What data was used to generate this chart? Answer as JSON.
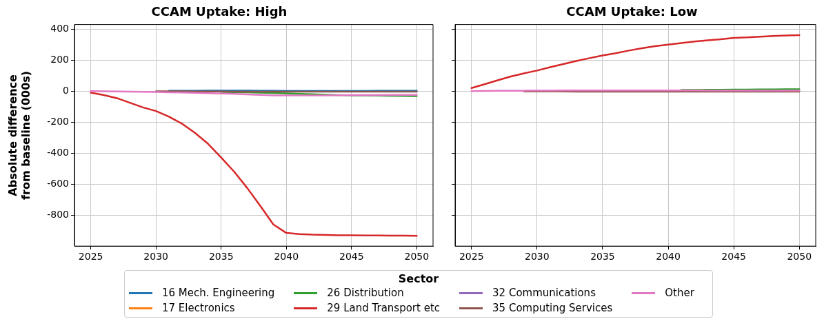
{
  "chart_data": [
    {
      "type": "line",
      "title": "CCAM Uptake: High",
      "ylabel": "Absolute difference\nfrom baseline (000s)",
      "legend": "bottom",
      "legend_title": "Sector",
      "grid": true,
      "x": [
        2025,
        2026,
        2027,
        2028,
        2029,
        2030,
        2031,
        2032,
        2033,
        2034,
        2035,
        2036,
        2037,
        2038,
        2039,
        2040,
        2041,
        2042,
        2043,
        2044,
        2045,
        2046,
        2047,
        2048,
        2049,
        2050
      ],
      "xlim": [
        2023.75,
        2051.25
      ],
      "xticks": [
        2025,
        2030,
        2035,
        2040,
        2045,
        2050
      ],
      "ylim": [
        -1000,
        430
      ],
      "yticks": [
        -800,
        -600,
        -400,
        -200,
        0,
        200,
        400
      ],
      "series": [
        {
          "name": "16 Mech. Engineering",
          "color": "#1f77b4",
          "values": [
            null,
            null,
            null,
            null,
            null,
            null,
            3,
            3,
            3,
            4,
            4,
            4,
            4,
            3,
            2,
            1,
            1,
            1,
            1,
            1,
            1,
            1,
            2,
            2,
            2,
            2
          ]
        },
        {
          "name": "17 Electronics",
          "color": "#ff7f0e",
          "values": [
            null,
            null,
            null,
            null,
            null,
            null,
            null,
            null,
            null,
            null,
            null,
            null,
            null,
            null,
            null,
            null,
            null,
            null,
            null,
            null,
            null,
            null,
            null,
            null,
            null,
            null
          ]
        },
        {
          "name": "26 Distribution",
          "color": "#2ca02c",
          "values": [
            null,
            null,
            null,
            null,
            null,
            null,
            null,
            null,
            null,
            null,
            -5,
            -6,
            -8,
            -10,
            -12,
            -14,
            -17,
            -20,
            -23,
            -25,
            -27,
            -28,
            -29,
            -30,
            -31,
            -32
          ]
        },
        {
          "name": "29 Land Transport etc",
          "color": "#d62728",
          "values": [
            -10,
            -25,
            -45,
            -75,
            -105,
            -128,
            -165,
            -210,
            -270,
            -340,
            -428,
            -520,
            -625,
            -740,
            -860,
            -915,
            -922,
            -926,
            -928,
            -930,
            -930,
            -931,
            -931,
            -932,
            -932,
            -933
          ]
        },
        {
          "name": "32 Communications",
          "color": "#9467bd",
          "values": [
            null,
            null,
            null,
            null,
            null,
            null,
            null,
            null,
            null,
            null,
            null,
            null,
            null,
            null,
            null,
            null,
            null,
            null,
            null,
            null,
            null,
            null,
            null,
            null,
            null,
            null
          ]
        },
        {
          "name": "35 Computing Services",
          "color": "#8c564b",
          "values": [
            null,
            null,
            null,
            null,
            null,
            -1,
            -1,
            -1,
            -2,
            -2,
            -2,
            -3,
            -3,
            -3,
            -3,
            -3,
            -3,
            -3,
            -3,
            -3,
            -3,
            -3,
            -3,
            -3,
            -3,
            -3
          ]
        },
        {
          "name": "Other",
          "color": "#e377c2",
          "values": [
            0,
            -1,
            -2,
            -3,
            -4,
            -5,
            -7,
            -9,
            -11,
            -13,
            -15,
            -18,
            -21,
            -24,
            -27,
            -28,
            -28,
            -27,
            -27,
            -26,
            -25,
            -25,
            -25,
            -24,
            -24,
            -24
          ]
        }
      ]
    },
    {
      "type": "line",
      "title": "CCAM Uptake: Low",
      "tick_labels": "x",
      "grid": true,
      "x": [
        2025,
        2026,
        2027,
        2028,
        2029,
        2030,
        2031,
        2032,
        2033,
        2034,
        2035,
        2036,
        2037,
        2038,
        2039,
        2040,
        2041,
        2042,
        2043,
        2044,
        2045,
        2046,
        2047,
        2048,
        2049,
        2050
      ],
      "xlim": [
        2023.75,
        2051.25
      ],
      "xticks": [
        2025,
        2030,
        2035,
        2040,
        2045,
        2050
      ],
      "ylim": [
        -1000,
        430
      ],
      "yticks": [
        -800,
        -600,
        -400,
        -200,
        0,
        200,
        400
      ],
      "series": [
        {
          "color": "#1f77b4",
          "values": [
            null,
            null,
            null,
            null,
            null,
            null,
            null,
            null,
            null,
            null,
            null,
            null,
            null,
            null,
            null,
            null,
            null,
            null,
            null,
            null,
            null,
            null,
            null,
            null,
            null,
            null
          ]
        },
        {
          "color": "#ff7f0e",
          "values": [
            null,
            null,
            null,
            null,
            null,
            null,
            null,
            null,
            null,
            null,
            null,
            null,
            null,
            null,
            null,
            null,
            null,
            null,
            null,
            null,
            null,
            null,
            null,
            null,
            null,
            null
          ]
        },
        {
          "color": "#2ca02c",
          "values": [
            null,
            null,
            null,
            null,
            null,
            null,
            null,
            null,
            null,
            null,
            null,
            null,
            null,
            null,
            null,
            null,
            8,
            8,
            9,
            9,
            10,
            10,
            11,
            11,
            12,
            12
          ]
        },
        {
          "color": "#d62728",
          "values": [
            20,
            45,
            70,
            95,
            115,
            133,
            155,
            175,
            195,
            213,
            230,
            245,
            262,
            277,
            290,
            300,
            310,
            320,
            328,
            335,
            344,
            347,
            352,
            356,
            359,
            361
          ]
        },
        {
          "color": "#9467bd",
          "values": [
            null,
            null,
            null,
            null,
            null,
            null,
            null,
            null,
            null,
            null,
            null,
            null,
            null,
            null,
            null,
            null,
            null,
            null,
            null,
            null,
            null,
            null,
            null,
            null,
            null,
            null
          ]
        },
        {
          "color": "#8c564b",
          "values": [
            null,
            null,
            null,
            null,
            -2,
            -2,
            -2,
            -2,
            -3,
            -3,
            -3,
            -3,
            -3,
            -3,
            -3,
            -3,
            -3,
            -3,
            -3,
            -3,
            -3,
            -3,
            -3,
            -3,
            -3,
            -3
          ]
        },
        {
          "color": "#e377c2",
          "values": [
            0,
            1,
            2,
            3,
            3,
            4,
            4,
            5,
            5,
            5,
            5,
            5,
            5,
            5,
            5,
            5,
            5,
            5,
            4,
            4,
            4,
            4,
            4,
            4,
            4,
            4
          ]
        }
      ]
    }
  ]
}
